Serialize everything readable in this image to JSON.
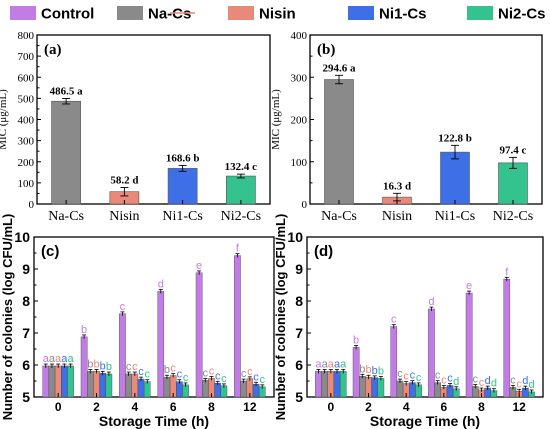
{
  "legend": {
    "items": [
      {
        "label": "Control",
        "color": "#c27ce6"
      },
      {
        "label": "Na-Cs",
        "color": "#8a8a8a"
      },
      {
        "label": "Nisin",
        "color": "#e8897a"
      },
      {
        "label": "Ni1-Cs",
        "color": "#3e6fe6"
      },
      {
        "label": "Ni2-Cs",
        "color": "#34c28e"
      }
    ]
  },
  "chart_data": [
    {
      "panel": "(a)",
      "type": "bar",
      "ylabel": "MIC (μg/mL)",
      "ylim": [
        0,
        800
      ],
      "yticks": [
        "0",
        "100",
        "200",
        "300",
        "400",
        "500",
        "600",
        "700",
        "800"
      ],
      "categories": [
        "Na-Cs",
        "Nisin",
        "Ni1-Cs",
        "Ni2-Cs"
      ],
      "values": [
        486.5,
        58.2,
        168.6,
        132.4
      ],
      "errors": [
        13,
        20,
        14,
        9
      ],
      "labels": [
        "486.5 a",
        "58.2 d",
        "168.6 b",
        "132.4 c"
      ],
      "colors": [
        "#8a8a8a",
        "#e8897a",
        "#3e6fe6",
        "#34c28e"
      ]
    },
    {
      "panel": "(b)",
      "type": "bar",
      "ylabel": "MIC (μg/mL)",
      "ylim": [
        0,
        400
      ],
      "yticks": [
        "0",
        "100",
        "200",
        "300",
        "400"
      ],
      "categories": [
        "Na-Cs",
        "Nisin",
        "Ni1-Cs",
        "Ni2-Cs"
      ],
      "values": [
        294.6,
        16.3,
        122.8,
        97.4
      ],
      "errors": [
        10,
        9,
        16,
        13
      ],
      "labels": [
        "294.6 a",
        "16.3 d",
        "122.8 b",
        "97.4 c"
      ],
      "colors": [
        "#8a8a8a",
        "#e8897a",
        "#3e6fe6",
        "#34c28e"
      ]
    },
    {
      "panel": "(c)",
      "type": "bar",
      "xlabel": "Storage Time (h)",
      "ylabel": "Number of colonies (log CFU/mL)",
      "ylim": [
        5,
        10
      ],
      "yticks": [
        "5",
        "6",
        "7",
        "8",
        "9",
        "10"
      ],
      "categories": [
        "0",
        "2",
        "4",
        "6",
        "8",
        "12"
      ],
      "series": [
        {
          "name": "Control",
          "values": [
            5.97,
            6.88,
            7.6,
            8.3,
            8.88,
            9.42
          ],
          "letters": [
            "a",
            "b",
            "c",
            "d",
            "e",
            "f"
          ]
        },
        {
          "name": "Na-Cs",
          "values": [
            5.97,
            5.8,
            5.72,
            5.62,
            5.52,
            5.5
          ],
          "letters": [
            "a",
            "b",
            "c",
            "b",
            "c",
            "c"
          ]
        },
        {
          "name": "Nisin",
          "values": [
            5.97,
            5.8,
            5.72,
            5.67,
            5.58,
            5.57
          ],
          "letters": [
            "a",
            "b",
            "c",
            "c",
            "c",
            "c"
          ]
        },
        {
          "name": "Ni1-Cs",
          "values": [
            5.97,
            5.74,
            5.56,
            5.48,
            5.43,
            5.4
          ],
          "letters": [
            "a",
            "b",
            "c",
            "c",
            "c",
            "c"
          ]
        },
        {
          "name": "Ni2-Cs",
          "values": [
            5.97,
            5.72,
            5.48,
            5.38,
            5.35,
            5.32
          ],
          "letters": [
            "a",
            "b",
            "c",
            "c",
            "c",
            "c"
          ]
        }
      ]
    },
    {
      "panel": "(d)",
      "type": "bar",
      "xlabel": "Storage Time (h)",
      "ylabel": "Number of colonies (log CFU/mL)",
      "ylim": [
        5,
        10
      ],
      "yticks": [
        "5",
        "6",
        "7",
        "8",
        "9",
        "10"
      ],
      "categories": [
        "0",
        "2",
        "4",
        "6",
        "8",
        "12"
      ],
      "series": [
        {
          "name": "Control",
          "values": [
            5.8,
            6.55,
            7.2,
            7.75,
            8.25,
            8.68
          ],
          "letters": [
            "a",
            "b",
            "c",
            "d",
            "e",
            "f"
          ]
        },
        {
          "name": "Na-Cs",
          "values": [
            5.8,
            5.65,
            5.5,
            5.45,
            5.33,
            5.3
          ],
          "letters": [
            "a",
            "b",
            "c",
            "c",
            "c",
            "c"
          ]
        },
        {
          "name": "Nisin",
          "values": [
            5.8,
            5.62,
            5.42,
            5.3,
            5.22,
            5.18
          ],
          "letters": [
            "a",
            "b",
            "c",
            "c",
            "c",
            "c"
          ]
        },
        {
          "name": "Ni1-Cs",
          "values": [
            5.8,
            5.6,
            5.45,
            5.36,
            5.28,
            5.28
          ],
          "letters": [
            "a",
            "b",
            "c",
            "c",
            "d",
            "d"
          ]
        },
        {
          "name": "Ni2-Cs",
          "values": [
            5.8,
            5.58,
            5.38,
            5.26,
            5.2,
            5.16
          ],
          "letters": [
            "a",
            "b",
            "c",
            "d",
            "d",
            "d"
          ]
        }
      ]
    }
  ]
}
